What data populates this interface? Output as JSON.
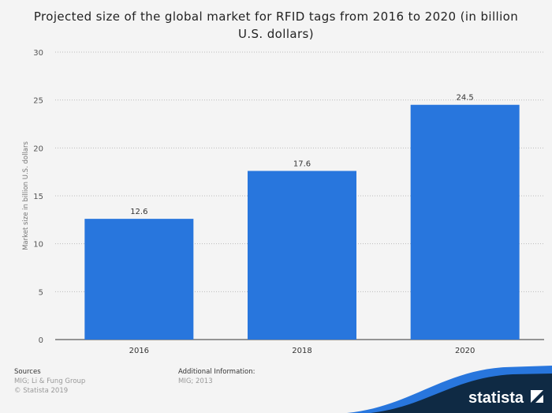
{
  "chart_data": {
    "type": "bar",
    "title": "Projected size of the global market for RFID tags from 2016 to 2020 (in billion U.S. dollars)",
    "xlabel": "",
    "ylabel": "Market size in billion U.S. dollars",
    "categories": [
      "2016",
      "2018",
      "2020"
    ],
    "values": [
      12.6,
      17.6,
      24.5
    ],
    "data_labels": [
      "12.6",
      "17.6",
      "24.5"
    ],
    "ylim": [
      0,
      30
    ],
    "yticks": [
      0,
      5,
      10,
      15,
      20,
      25,
      30
    ],
    "grid": true,
    "bar_color": "#2876dd"
  },
  "footer": {
    "sources_label": "Sources",
    "sources": "MIG; Li & Fung Group",
    "copyright": "© Statista 2019",
    "additional_label": "Additional Information:",
    "additional": "MIG; 2013",
    "logo": "statista"
  }
}
